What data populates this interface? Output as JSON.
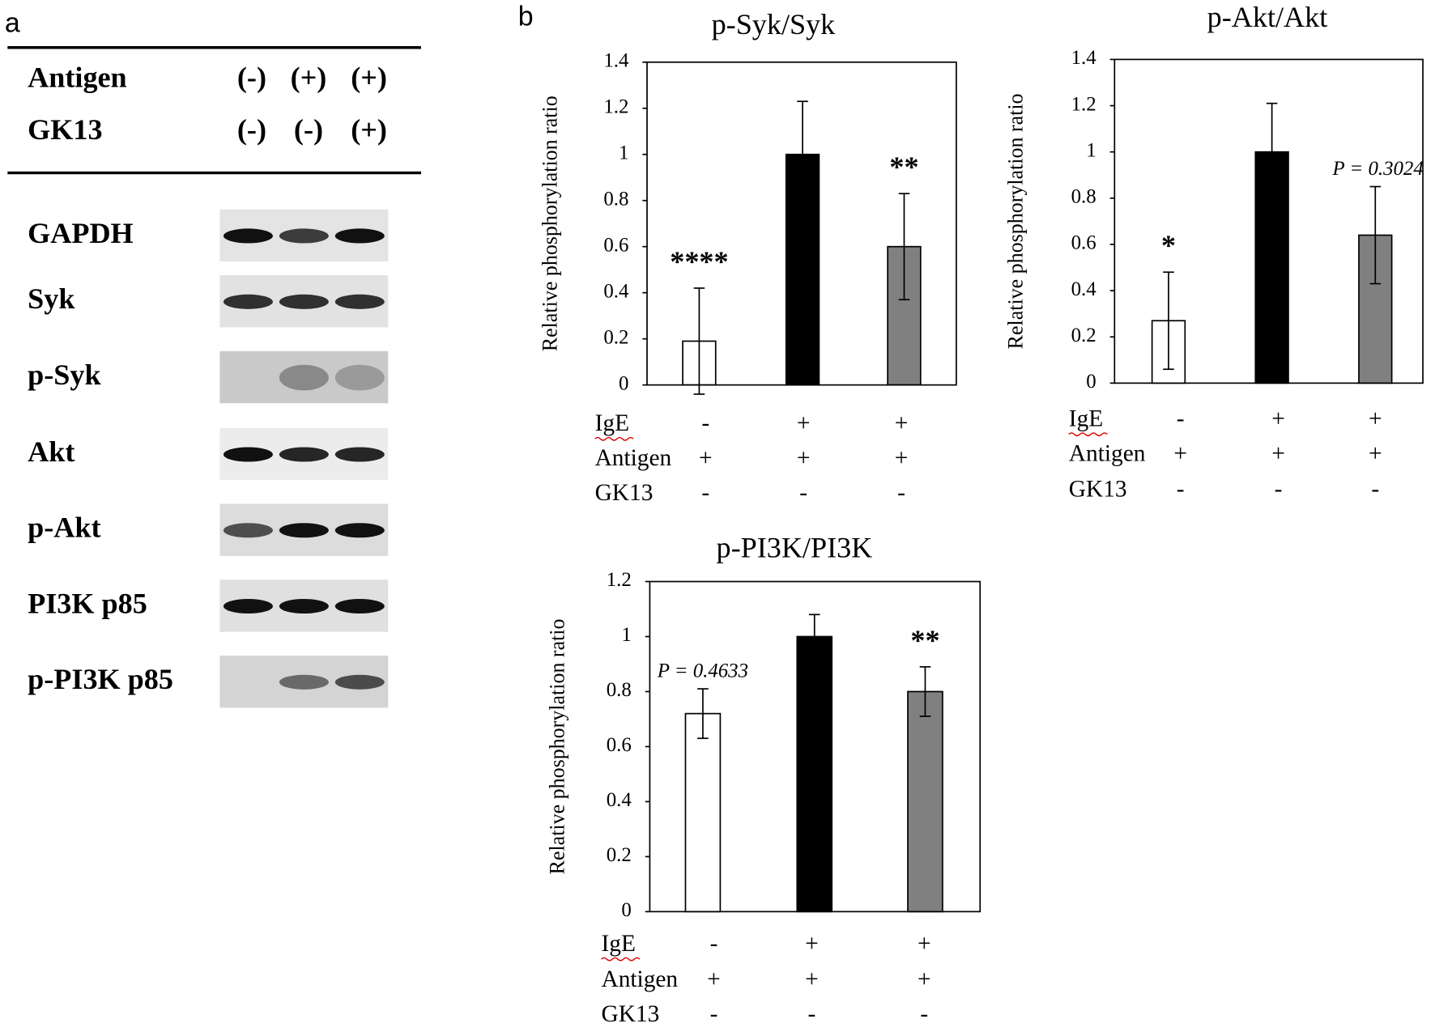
{
  "panels": [
    "a",
    "b"
  ],
  "blot": {
    "conditions": [
      {
        "label": "Antigen",
        "values": [
          "(-)",
          "(+)",
          "(+)"
        ]
      },
      {
        "label": "GK13",
        "values": [
          "(-)",
          "(-)",
          "(+)"
        ]
      }
    ],
    "rows": [
      "GAPDH",
      "Syk",
      "p-Syk",
      "Akt",
      "p-Akt",
      "PI3K p85",
      "p-PI3K p85"
    ]
  },
  "chart_data": [
    {
      "type": "bar",
      "title": "p-Syk/Syk",
      "y_label": "Relative phosphorylation ratio",
      "values": [
        0.19,
        1,
        0.6
      ],
      "errors": [
        0.23,
        0.23,
        0.23
      ],
      "colors": [
        "#ffffff",
        "#000000",
        "#808080"
      ],
      "annotations": [
        "****",
        null,
        "**"
      ],
      "ylim": [
        0,
        1.4
      ],
      "yticks": [
        0,
        0.2,
        0.4,
        0.6,
        0.8,
        1,
        1.2,
        1.4
      ],
      "conditions": [
        {
          "label": "IgE",
          "values": [
            "-",
            "+",
            "+"
          ]
        },
        {
          "label": "Antigen",
          "values": [
            "+",
            "+",
            "+"
          ]
        },
        {
          "label": "GK13",
          "values": [
            "-",
            "-",
            "-"
          ]
        }
      ]
    },
    {
      "type": "bar",
      "title": "p-Akt/Akt",
      "y_label": "Relative phosphorylation ratio",
      "values": [
        0.27,
        1,
        0.64
      ],
      "errors": [
        0.21,
        0.21,
        0.21
      ],
      "colors": [
        "#ffffff",
        "#000000",
        "#808080"
      ],
      "annotations": [
        "*",
        null,
        "P = 0.3024"
      ],
      "ylim": [
        0,
        1.4
      ],
      "yticks": [
        0,
        0.2,
        0.4,
        0.6,
        0.8,
        1,
        1.2,
        1.4
      ],
      "conditions": [
        {
          "label": "IgE",
          "values": [
            "-",
            "+",
            "+"
          ]
        },
        {
          "label": "Antigen",
          "values": [
            "+",
            "+",
            "+"
          ]
        },
        {
          "label": "GK13",
          "values": [
            "-",
            "-",
            "-"
          ]
        }
      ]
    },
    {
      "type": "bar",
      "title": "p-PI3K/PI3K",
      "y_label": "Relative phosphorylation ratio",
      "values": [
        0.72,
        1,
        0.8
      ],
      "errors": [
        0.09,
        0.08,
        0.09
      ],
      "colors": [
        "#ffffff",
        "#000000",
        "#808080"
      ],
      "annotations": [
        "P = 0.4633",
        null,
        "**"
      ],
      "ylim": [
        0,
        1.2
      ],
      "yticks": [
        0,
        0.2,
        0.4,
        0.6,
        0.8,
        1,
        1.2
      ],
      "conditions": [
        {
          "label": "IgE",
          "values": [
            "-",
            "+",
            "+"
          ]
        },
        {
          "label": "Antigen",
          "values": [
            "+",
            "+",
            "+"
          ]
        },
        {
          "label": "GK13",
          "values": [
            "-",
            "-",
            "-"
          ]
        }
      ]
    }
  ]
}
